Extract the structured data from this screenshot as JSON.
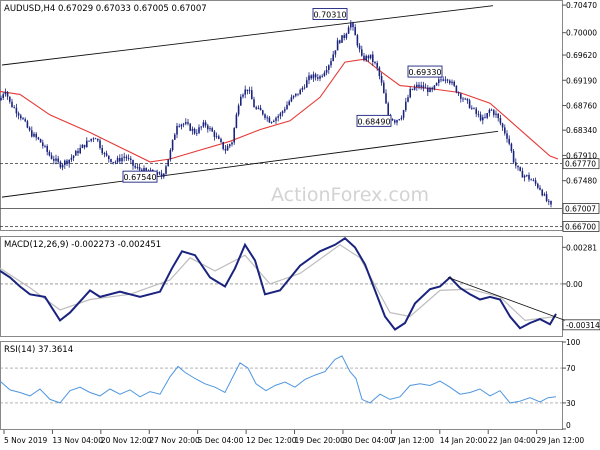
{
  "chart_data": {
    "type": "candlestick",
    "colors": {
      "candles": "#1a237e",
      "ma": "#e53935",
      "channel": "#111111",
      "macd_line": "#1a237e",
      "macd_signal": "#bdbdbd",
      "rsi": "#4f96e0",
      "level_box_border": "#1a237e",
      "grid": "#bbbbbb"
    },
    "main": {
      "header": "AUDUSD,H4 0.67029 0.67033 0.67005 0.67007",
      "ylim": [
        0.6664,
        0.7054
      ],
      "y_ticks": [
        "0.70470",
        "0.70000",
        "0.69620",
        "0.69190",
        "0.68760",
        "0.68340",
        "0.67910",
        "0.67480"
      ],
      "price_series": [
        [
          0,
          0.6885
        ],
        [
          5,
          0.6905
        ],
        [
          10,
          0.688
        ],
        [
          20,
          0.686
        ],
        [
          30,
          0.683
        ],
        [
          40,
          0.6815
        ],
        [
          50,
          0.679
        ],
        [
          60,
          0.6775
        ],
        [
          70,
          0.6785
        ],
        [
          85,
          0.681
        ],
        [
          95,
          0.6825
        ],
        [
          105,
          0.679
        ],
        [
          115,
          0.678
        ],
        [
          125,
          0.679
        ],
        [
          135,
          0.677
        ],
        [
          145,
          0.6764
        ],
        [
          155,
          0.676
        ],
        [
          162,
          0.6755
        ],
        [
          170,
          0.6795
        ],
        [
          177,
          0.6845
        ],
        [
          185,
          0.6845
        ],
        [
          195,
          0.683
        ],
        [
          205,
          0.6845
        ],
        [
          215,
          0.6825
        ],
        [
          225,
          0.68
        ],
        [
          232,
          0.6815
        ],
        [
          240,
          0.6895
        ],
        [
          248,
          0.6905
        ],
        [
          255,
          0.687
        ],
        [
          262,
          0.6865
        ],
        [
          270,
          0.685
        ],
        [
          280,
          0.686
        ],
        [
          290,
          0.6885
        ],
        [
          300,
          0.69
        ],
        [
          310,
          0.6925
        ],
        [
          320,
          0.6925
        ],
        [
          330,
          0.695
        ],
        [
          338,
          0.6985
        ],
        [
          345,
          0.6995
        ],
        [
          350,
          0.702
        ],
        [
          356,
          0.699
        ],
        [
          362,
          0.6955
        ],
        [
          370,
          0.696
        ],
        [
          377,
          0.694
        ],
        [
          382,
          0.691
        ],
        [
          388,
          0.686
        ],
        [
          395,
          0.685
        ],
        [
          402,
          0.686
        ],
        [
          410,
          0.69
        ],
        [
          418,
          0.691
        ],
        [
          425,
          0.6905
        ],
        [
          432,
          0.69
        ],
        [
          440,
          0.692
        ],
        [
          447,
          0.6925
        ],
        [
          455,
          0.6905
        ],
        [
          462,
          0.689
        ],
        [
          470,
          0.6875
        ],
        [
          477,
          0.686
        ],
        [
          484,
          0.685
        ],
        [
          490,
          0.687
        ],
        [
          496,
          0.686
        ],
        [
          502,
          0.684
        ],
        [
          508,
          0.682
        ],
        [
          514,
          0.678
        ],
        [
          520,
          0.676
        ],
        [
          527,
          0.6755
        ],
        [
          534,
          0.6745
        ],
        [
          540,
          0.6735
        ],
        [
          546,
          0.6715
        ],
        [
          552,
          0.6701
        ]
      ],
      "ma_series": [
        [
          0,
          0.69
        ],
        [
          20,
          0.6895
        ],
        [
          50,
          0.686
        ],
        [
          90,
          0.683
        ],
        [
          120,
          0.6805
        ],
        [
          150,
          0.678
        ],
        [
          170,
          0.6785
        ],
        [
          200,
          0.68
        ],
        [
          230,
          0.6815
        ],
        [
          260,
          0.6835
        ],
        [
          290,
          0.685
        ],
        [
          320,
          0.689
        ],
        [
          345,
          0.695
        ],
        [
          365,
          0.6955
        ],
        [
          380,
          0.6935
        ],
        [
          400,
          0.691
        ],
        [
          430,
          0.6905
        ],
        [
          460,
          0.6898
        ],
        [
          490,
          0.688
        ],
        [
          510,
          0.685
        ],
        [
          530,
          0.682
        ],
        [
          550,
          0.679
        ],
        [
          558,
          0.6785
        ]
      ],
      "channel_upper": [
        [
          2,
          0.6945
        ],
        [
          493,
          0.7046
        ]
      ],
      "channel_lower": [
        [
          2,
          0.672
        ],
        [
          498,
          0.6832
        ]
      ],
      "hlines": [
        {
          "value": 0.6777,
          "style": "dashed",
          "color": "#333333"
        },
        {
          "value": 0.67007,
          "style": "solid",
          "color": "#555555"
        },
        {
          "value": 0.667,
          "style": "dashed",
          "color": "#333333"
        }
      ],
      "level_boxes": [
        {
          "label": "0.70310",
          "x": 313,
          "value": 0.7031
        },
        {
          "label": "0.69330",
          "x": 408,
          "value": 0.6933
        },
        {
          "label": "0.68490",
          "x": 357,
          "value": 0.6849
        },
        {
          "label": "0.67540",
          "x": 123,
          "value": 0.6754
        }
      ],
      "right_tags": [
        {
          "label": "0.67770",
          "value": 0.6777
        },
        {
          "label": "0.67007",
          "value": 0.67007
        },
        {
          "label": "0.66700",
          "value": 0.667
        }
      ],
      "watermark": "ActionForex.com"
    },
    "macd": {
      "header": "MACD(12,26,9) -0.002273 -0.002451",
      "ylim": [
        -0.004,
        0.0036
      ],
      "y_ticks": [
        "0.00281",
        "0.00",
        "-0.003141"
      ],
      "line_series": [
        [
          0,
          0.001
        ],
        [
          10,
          0.0005
        ],
        [
          20,
          -0.0002
        ],
        [
          30,
          -0.0008
        ],
        [
          45,
          -0.001
        ],
        [
          60,
          -0.0028
        ],
        [
          70,
          -0.0022
        ],
        [
          90,
          -0.0005
        ],
        [
          100,
          -0.001
        ],
        [
          120,
          -0.0006
        ],
        [
          140,
          -0.001
        ],
        [
          160,
          -0.0006
        ],
        [
          172,
          0.0012
        ],
        [
          182,
          0.0025
        ],
        [
          195,
          0.0022
        ],
        [
          210,
          0.0005
        ],
        [
          225,
          -0.0002
        ],
        [
          235,
          0.0012
        ],
        [
          245,
          0.003
        ],
        [
          255,
          0.0018
        ],
        [
          265,
          -0.0008
        ],
        [
          280,
          -0.0005
        ],
        [
          300,
          0.0014
        ],
        [
          320,
          0.0025
        ],
        [
          335,
          0.003
        ],
        [
          345,
          0.0035
        ],
        [
          355,
          0.0028
        ],
        [
          365,
          0.0015
        ],
        [
          375,
          -0.0005
        ],
        [
          385,
          -0.0025
        ],
        [
          395,
          -0.0035
        ],
        [
          405,
          -0.003
        ],
        [
          415,
          -0.0015
        ],
        [
          430,
          -0.0004
        ],
        [
          440,
          -0.0002
        ],
        [
          450,
          0.0005
        ],
        [
          460,
          -0.0003
        ],
        [
          470,
          -0.0008
        ],
        [
          480,
          -0.0012
        ],
        [
          490,
          -0.001
        ],
        [
          500,
          -0.0012
        ],
        [
          510,
          -0.0025
        ],
        [
          520,
          -0.0034
        ],
        [
          530,
          -0.003
        ],
        [
          540,
          -0.0027
        ],
        [
          550,
          -0.0031
        ],
        [
          556,
          -0.0023
        ]
      ],
      "signal_series": [
        [
          0,
          0.0012
        ],
        [
          30,
          -0.0003
        ],
        [
          60,
          -0.002
        ],
        [
          90,
          -0.0012
        ],
        [
          130,
          -0.0008
        ],
        [
          170,
          0.0003
        ],
        [
          190,
          0.002
        ],
        [
          215,
          0.001
        ],
        [
          245,
          0.0022
        ],
        [
          270,
          0.0
        ],
        [
          300,
          0.0008
        ],
        [
          340,
          0.003
        ],
        [
          360,
          0.002
        ],
        [
          390,
          -0.0022
        ],
        [
          410,
          -0.0025
        ],
        [
          440,
          -0.0005
        ],
        [
          470,
          -0.0004
        ],
        [
          500,
          -0.001
        ],
        [
          525,
          -0.0028
        ],
        [
          556,
          -0.0025
        ]
      ],
      "trendline": [
        [
          448,
          0.0005
        ],
        [
          565,
          -0.0028
        ]
      ]
    },
    "rsi": {
      "header": "RSI(14) 37.3614",
      "ylim": [
        0,
        100
      ],
      "y_ticks": [
        "100",
        "70",
        "30",
        "0"
      ],
      "series": [
        [
          0,
          55
        ],
        [
          10,
          45
        ],
        [
          20,
          42
        ],
        [
          30,
          38
        ],
        [
          40,
          46
        ],
        [
          50,
          34
        ],
        [
          60,
          30
        ],
        [
          70,
          44
        ],
        [
          80,
          48
        ],
        [
          90,
          42
        ],
        [
          100,
          38
        ],
        [
          110,
          46
        ],
        [
          120,
          40
        ],
        [
          130,
          45
        ],
        [
          140,
          37
        ],
        [
          150,
          43
        ],
        [
          160,
          40
        ],
        [
          170,
          60
        ],
        [
          178,
          72
        ],
        [
          185,
          65
        ],
        [
          195,
          58
        ],
        [
          205,
          52
        ],
        [
          215,
          48
        ],
        [
          225,
          42
        ],
        [
          232,
          58
        ],
        [
          240,
          76
        ],
        [
          248,
          70
        ],
        [
          256,
          52
        ],
        [
          266,
          44
        ],
        [
          275,
          50
        ],
        [
          285,
          54
        ],
        [
          295,
          48
        ],
        [
          305,
          57
        ],
        [
          315,
          62
        ],
        [
          325,
          66
        ],
        [
          335,
          80
        ],
        [
          342,
          84
        ],
        [
          350,
          66
        ],
        [
          356,
          58
        ],
        [
          362,
          34
        ],
        [
          370,
          30
        ],
        [
          380,
          40
        ],
        [
          390,
          34
        ],
        [
          400,
          37
        ],
        [
          410,
          50
        ],
        [
          420,
          52
        ],
        [
          430,
          50
        ],
        [
          440,
          55
        ],
        [
          450,
          48
        ],
        [
          460,
          40
        ],
        [
          470,
          42
        ],
        [
          480,
          46
        ],
        [
          490,
          38
        ],
        [
          500,
          44
        ],
        [
          510,
          30
        ],
        [
          520,
          32
        ],
        [
          530,
          36
        ],
        [
          540,
          31
        ],
        [
          548,
          36
        ],
        [
          556,
          37
        ]
      ]
    },
    "x_ticks": [
      "5 Nov 2019",
      "13 Nov 04:00",
      "20 Nov 12:00",
      "27 Nov 20:00",
      "5 Dec 04:00",
      "12 Dec 12:00",
      "19 Dec 20:00",
      "30 Dec 04:00",
      "7 Jan 12:00",
      "14 Jan 20:00",
      "22 Jan 04:00",
      "29 Jan 12:00"
    ]
  }
}
